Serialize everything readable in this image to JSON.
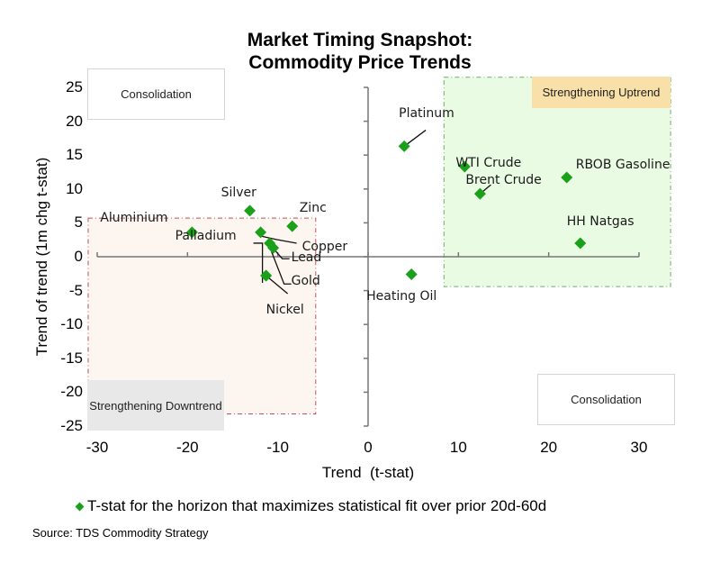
{
  "chart_data": {
    "type": "scatter",
    "title": "Market Timing Snapshot:",
    "subtitle": "Commodity Price Trends",
    "xlabel": "Trend  (t-stat)",
    "ylabel": "Trend of trend (1m chg t-stat)",
    "xlim": [
      -30,
      30
    ],
    "ylim": [
      -25,
      25
    ],
    "xticks": [
      -30,
      -20,
      -10,
      0,
      10,
      20,
      30
    ],
    "yticks": [
      25,
      20,
      15,
      10,
      5,
      0,
      -5,
      -10,
      -15,
      -20,
      -25
    ],
    "xtick_labels": [
      "-30",
      "-20",
      "-10",
      "0",
      "10",
      "20",
      "30"
    ],
    "ytick_labels": [
      "25",
      "20",
      "15",
      "10",
      "5",
      "0",
      "-5",
      "-10",
      "-15",
      "-20",
      "-25"
    ],
    "grid": false,
    "legend_position": "bottom",
    "series": [
      {
        "name": "T-stat for the horizon that maximizes statistical fit over prior 20d-60d",
        "color": "#1aa01a",
        "points": [
          {
            "label": "Platinum",
            "x": 4.0,
            "y": 16.3
          },
          {
            "label": "WTI Crude",
            "x": 10.7,
            "y": 13.3
          },
          {
            "label": "Brent Crude",
            "x": 12.4,
            "y": 9.3
          },
          {
            "label": "RBOB Gasoline",
            "x": 22.0,
            "y": 11.7
          },
          {
            "label": "HH Natgas",
            "x": 23.5,
            "y": 2.0
          },
          {
            "label": "Heating Oil",
            "x": 4.8,
            "y": -2.6
          },
          {
            "label": "Silver",
            "x": -13.1,
            "y": 6.8
          },
          {
            "label": "Aluminium",
            "x": -19.5,
            "y": 3.6
          },
          {
            "label": "Palladium",
            "x": -11.9,
            "y": 3.6
          },
          {
            "label": "Zinc",
            "x": -8.4,
            "y": 4.5
          },
          {
            "label": "Copper",
            "x": -10.9,
            "y": 2.0
          },
          {
            "label": "Lead",
            "x": -10.5,
            "y": 1.3
          },
          {
            "label": "Gold",
            "x": -11.3,
            "y": -2.8
          },
          {
            "label": "Nickel",
            "x": -11.3,
            "y": -2.8
          }
        ]
      }
    ],
    "regions": {
      "top_left": "Consolidation",
      "top_right": "Strengthening Uptrend",
      "bottom_left": "Strengthening Downtrend",
      "bottom_right": "Consolidation"
    },
    "colors": {
      "marker": "#1aa01a",
      "uptrend_fill": "#e9fbe3",
      "uptrend_border": "#6fae6f",
      "downtrend_fill": "#fdf6f0",
      "downtrend_border": "#c0505a",
      "uptrend_label_fill": "#f8e0a8",
      "downtrend_label_fill": "#e8e8e8",
      "axis": "#777777"
    }
  },
  "source": "Source: TDS Commodity Strategy"
}
